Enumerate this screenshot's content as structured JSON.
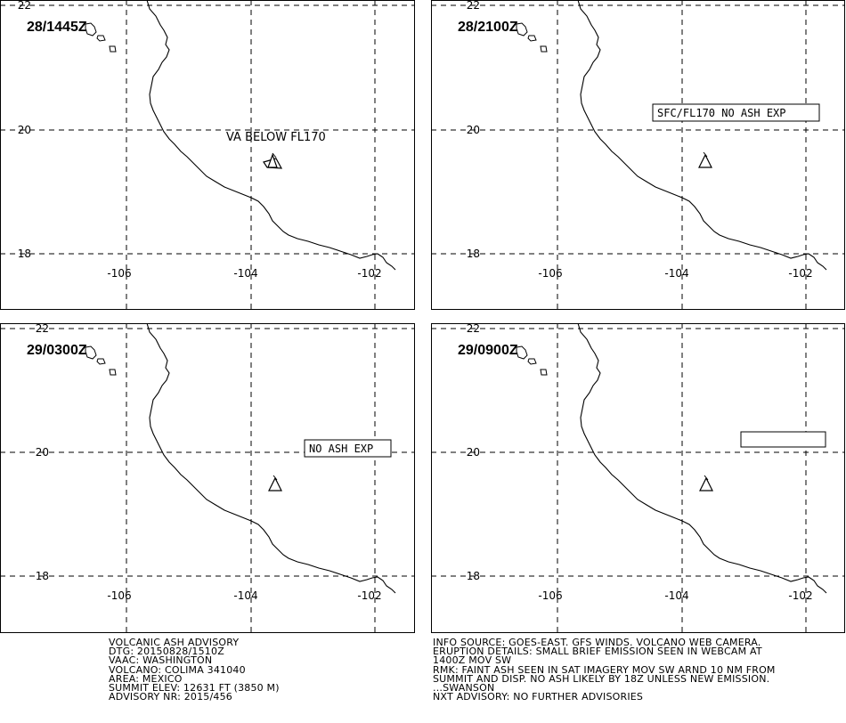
{
  "panels": [
    {
      "dtg": "28/1445Z",
      "annotation": "VA BELOW FL170",
      "annotation_style": "plain"
    },
    {
      "dtg": "28/2100Z",
      "annotation": "SFC/FL170 NO ASH EXP",
      "annotation_style": "boxed"
    },
    {
      "dtg": "29/0300Z",
      "annotation": "NO ASH EXP",
      "annotation_style": "boxed"
    },
    {
      "dtg": "29/0900Z",
      "annotation": "",
      "annotation_style": "empty-box"
    }
  ],
  "axes": {
    "lat_labels": [
      "22",
      "20",
      "18"
    ],
    "lon_labels": [
      "-106",
      "-104",
      "-102"
    ]
  },
  "icons": {
    "volcano": "volcano-triangle-icon"
  },
  "footer_left": [
    "VOLCANIC ASH ADVISORY",
    "DTG: 20150828/1510Z",
    "VAAC: WASHINGTON",
    "VOLCANO: COLIMA 341040",
    "AREA: MEXICO",
    "SUMMIT ELEV: 12631 FT (3850 M)",
    "ADVISORY NR: 2015/456"
  ],
  "footer_right": [
    "INFO SOURCE: GOES-EAST. GFS WINDS. VOLCANO WEB CAMERA.",
    "ERUPTION DETAILS: SMALL BRIEF EMISSION SEEN IN WEBCAM AT",
    "1400Z MOV SW",
    "RMK: FAINT ASH SEEN IN SAT IMAGERY MOV SW ARND 10 NM FROM",
    "SUMMIT AND DISP. NO ASH LIKELY BY 18Z UNLESS NEW EMISSION.",
    "...SWANSON",
    "NXT ADVISORY: NO FURTHER ADVISORIES"
  ]
}
